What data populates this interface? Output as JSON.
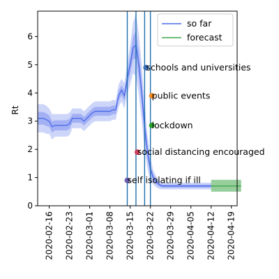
{
  "chart_data": {
    "type": "line",
    "title": "",
    "xlabel": "",
    "ylabel": "Rt",
    "ylim": [
      0,
      6.9
    ],
    "xlim": [
      "2020-02-12",
      "2020-04-21"
    ],
    "grid": false,
    "legend_position": "top-right",
    "x_ticks": [
      "2020-02-16",
      "2020-02-23",
      "2020-03-01",
      "2020-03-08",
      "2020-03-15",
      "2020-03-22",
      "2020-03-29",
      "2020-04-05",
      "2020-04-12",
      "2020-04-19"
    ],
    "y_ticks": [
      0,
      1,
      2,
      3,
      4,
      5,
      6
    ],
    "series": [
      {
        "name": "so far",
        "color": "#4a68e8",
        "points": [
          [
            "2020-02-12",
            3.1
          ],
          [
            "2020-02-13",
            3.1
          ],
          [
            "2020-02-14",
            3.1
          ],
          [
            "2020-02-15",
            3.05
          ],
          [
            "2020-02-16",
            3.0
          ],
          [
            "2020-02-17",
            2.8
          ],
          [
            "2020-02-18",
            2.85
          ],
          [
            "2020-02-19",
            2.85
          ],
          [
            "2020-02-20",
            2.85
          ],
          [
            "2020-02-21",
            2.85
          ],
          [
            "2020-02-22",
            2.85
          ],
          [
            "2020-02-23",
            2.9
          ],
          [
            "2020-02-24",
            3.1
          ],
          [
            "2020-02-25",
            3.1
          ],
          [
            "2020-02-26",
            3.1
          ],
          [
            "2020-02-27",
            3.1
          ],
          [
            "2020-02-28",
            3.0
          ],
          [
            "2020-02-29",
            3.1
          ],
          [
            "2020-03-01",
            3.2
          ],
          [
            "2020-03-02",
            3.3
          ],
          [
            "2020-03-03",
            3.35
          ],
          [
            "2020-03-04",
            3.35
          ],
          [
            "2020-03-05",
            3.35
          ],
          [
            "2020-03-06",
            3.35
          ],
          [
            "2020-03-07",
            3.35
          ],
          [
            "2020-03-08",
            3.35
          ],
          [
            "2020-03-09",
            3.4
          ],
          [
            "2020-03-10",
            3.4
          ],
          [
            "2020-03-11",
            3.9
          ],
          [
            "2020-03-12",
            4.1
          ],
          [
            "2020-03-13",
            3.9
          ],
          [
            "2020-03-14",
            4.5
          ],
          [
            "2020-03-15",
            5.0
          ],
          [
            "2020-03-16",
            5.6
          ],
          [
            "2020-03-17",
            5.7
          ],
          [
            "2020-03-18",
            5.0
          ],
          [
            "2020-03-19",
            4.0
          ],
          [
            "2020-03-20",
            2.8
          ],
          [
            "2020-03-21",
            1.9
          ],
          [
            "2020-03-22",
            1.3
          ],
          [
            "2020-03-23",
            1.0
          ],
          [
            "2020-03-24",
            0.85
          ],
          [
            "2020-03-25",
            0.75
          ],
          [
            "2020-03-26",
            0.7
          ],
          [
            "2020-03-27",
            0.7
          ],
          [
            "2020-03-28",
            0.7
          ],
          [
            "2020-03-30",
            0.7
          ],
          [
            "2020-04-05",
            0.7
          ],
          [
            "2020-04-10",
            0.7
          ],
          [
            "2020-04-12",
            0.7
          ]
        ],
        "band_halfwidth": [
          0.5,
          0.5,
          0.5,
          0.5,
          0.45,
          0.45,
          0.4,
          0.4,
          0.4,
          0.4,
          0.4,
          0.4,
          0.35,
          0.35,
          0.35,
          0.35,
          0.35,
          0.35,
          0.35,
          0.35,
          0.35,
          0.35,
          0.35,
          0.35,
          0.35,
          0.35,
          0.35,
          0.35,
          0.4,
          0.4,
          0.45,
          0.55,
          0.7,
          0.9,
          1.1,
          1.1,
          1.0,
          0.8,
          0.6,
          0.4,
          0.25,
          0.2,
          0.15,
          0.12,
          0.12,
          0.12,
          0.12,
          0.12,
          0.12,
          0.12
        ]
      },
      {
        "name": "forecast",
        "color": "#3fa64a",
        "points": [
          [
            "2020-04-12",
            0.7
          ],
          [
            "2020-04-16",
            0.7
          ],
          [
            "2020-04-19",
            0.7
          ]
        ],
        "band": [
          0.5,
          0.92
        ]
      }
    ],
    "vertical_lines": [
      "2020-03-14",
      "2020-03-17",
      "2020-03-20",
      "2020-03-22"
    ],
    "events": [
      {
        "label": "self isolating if ill",
        "date": "2020-03-14",
        "value": 0.9,
        "color": "#6a5fb0"
      },
      {
        "label": "social distancing encouraged",
        "date": "2020-03-17",
        "value": 1.9,
        "color": "#d1425a"
      },
      {
        "label": "schools and universities",
        "date": "2020-03-20",
        "value": 4.9,
        "color": "#3a6fb8"
      },
      {
        "label": "public events",
        "date": "2020-03-22",
        "value": 3.9,
        "color": "#f08a24"
      },
      {
        "label": "lockdown",
        "date": "2020-03-22",
        "value": 2.85,
        "color": "#2ca02c"
      }
    ]
  }
}
